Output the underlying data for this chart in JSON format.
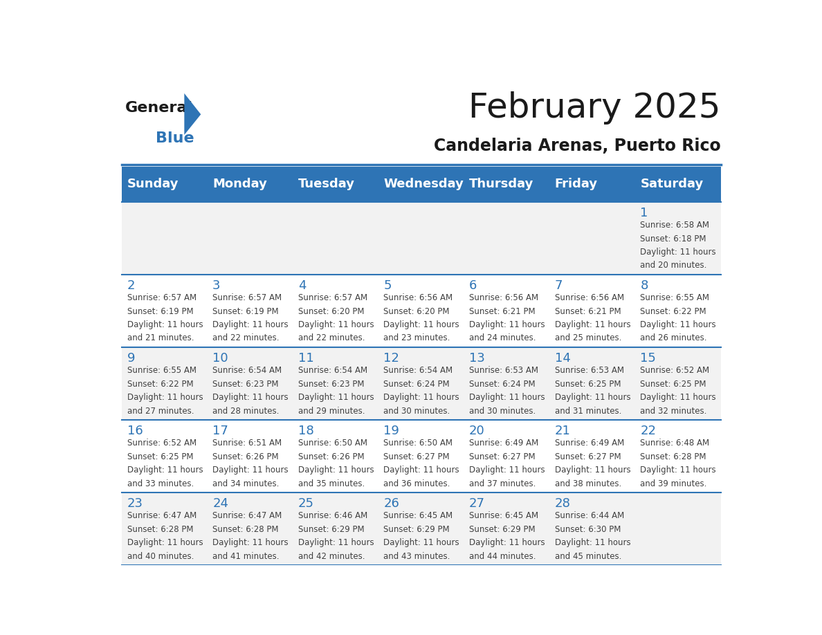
{
  "title": "February 2025",
  "subtitle": "Candelaria Arenas, Puerto Rico",
  "days_of_week": [
    "Sunday",
    "Monday",
    "Tuesday",
    "Wednesday",
    "Thursday",
    "Friday",
    "Saturday"
  ],
  "header_bg": "#2E74B5",
  "header_text": "#FFFFFF",
  "row_bg_light": "#FFFFFF",
  "row_bg_dark": "#F2F2F2",
  "cell_border": "#2E74B5",
  "day_num_color": "#2E74B5",
  "info_text_color": "#404040",
  "title_color": "#1a1a1a",
  "subtitle_color": "#1a1a1a",
  "logo_general_color": "#1a1a1a",
  "logo_blue_color": "#2E74B5",
  "logo_triangle_color": "#2E74B5",
  "calendar": [
    [
      null,
      null,
      null,
      null,
      null,
      null,
      {
        "day": 1,
        "sunrise": "6:58 AM",
        "sunset": "6:18 PM",
        "daylight": "11 hours and 20 minutes."
      }
    ],
    [
      {
        "day": 2,
        "sunrise": "6:57 AM",
        "sunset": "6:19 PM",
        "daylight": "11 hours and 21 minutes."
      },
      {
        "day": 3,
        "sunrise": "6:57 AM",
        "sunset": "6:19 PM",
        "daylight": "11 hours and 22 minutes."
      },
      {
        "day": 4,
        "sunrise": "6:57 AM",
        "sunset": "6:20 PM",
        "daylight": "11 hours and 22 minutes."
      },
      {
        "day": 5,
        "sunrise": "6:56 AM",
        "sunset": "6:20 PM",
        "daylight": "11 hours and 23 minutes."
      },
      {
        "day": 6,
        "sunrise": "6:56 AM",
        "sunset": "6:21 PM",
        "daylight": "11 hours and 24 minutes."
      },
      {
        "day": 7,
        "sunrise": "6:56 AM",
        "sunset": "6:21 PM",
        "daylight": "11 hours and 25 minutes."
      },
      {
        "day": 8,
        "sunrise": "6:55 AM",
        "sunset": "6:22 PM",
        "daylight": "11 hours and 26 minutes."
      }
    ],
    [
      {
        "day": 9,
        "sunrise": "6:55 AM",
        "sunset": "6:22 PM",
        "daylight": "11 hours and 27 minutes."
      },
      {
        "day": 10,
        "sunrise": "6:54 AM",
        "sunset": "6:23 PM",
        "daylight": "11 hours and 28 minutes."
      },
      {
        "day": 11,
        "sunrise": "6:54 AM",
        "sunset": "6:23 PM",
        "daylight": "11 hours and 29 minutes."
      },
      {
        "day": 12,
        "sunrise": "6:54 AM",
        "sunset": "6:24 PM",
        "daylight": "11 hours and 30 minutes."
      },
      {
        "day": 13,
        "sunrise": "6:53 AM",
        "sunset": "6:24 PM",
        "daylight": "11 hours and 30 minutes."
      },
      {
        "day": 14,
        "sunrise": "6:53 AM",
        "sunset": "6:25 PM",
        "daylight": "11 hours and 31 minutes."
      },
      {
        "day": 15,
        "sunrise": "6:52 AM",
        "sunset": "6:25 PM",
        "daylight": "11 hours and 32 minutes."
      }
    ],
    [
      {
        "day": 16,
        "sunrise": "6:52 AM",
        "sunset": "6:25 PM",
        "daylight": "11 hours and 33 minutes."
      },
      {
        "day": 17,
        "sunrise": "6:51 AM",
        "sunset": "6:26 PM",
        "daylight": "11 hours and 34 minutes."
      },
      {
        "day": 18,
        "sunrise": "6:50 AM",
        "sunset": "6:26 PM",
        "daylight": "11 hours and 35 minutes."
      },
      {
        "day": 19,
        "sunrise": "6:50 AM",
        "sunset": "6:27 PM",
        "daylight": "11 hours and 36 minutes."
      },
      {
        "day": 20,
        "sunrise": "6:49 AM",
        "sunset": "6:27 PM",
        "daylight": "11 hours and 37 minutes."
      },
      {
        "day": 21,
        "sunrise": "6:49 AM",
        "sunset": "6:27 PM",
        "daylight": "11 hours and 38 minutes."
      },
      {
        "day": 22,
        "sunrise": "6:48 AM",
        "sunset": "6:28 PM",
        "daylight": "11 hours and 39 minutes."
      }
    ],
    [
      {
        "day": 23,
        "sunrise": "6:47 AM",
        "sunset": "6:28 PM",
        "daylight": "11 hours and 40 minutes."
      },
      {
        "day": 24,
        "sunrise": "6:47 AM",
        "sunset": "6:28 PM",
        "daylight": "11 hours and 41 minutes."
      },
      {
        "day": 25,
        "sunrise": "6:46 AM",
        "sunset": "6:29 PM",
        "daylight": "11 hours and 42 minutes."
      },
      {
        "day": 26,
        "sunrise": "6:45 AM",
        "sunset": "6:29 PM",
        "daylight": "11 hours and 43 minutes."
      },
      {
        "day": 27,
        "sunrise": "6:45 AM",
        "sunset": "6:29 PM",
        "daylight": "11 hours and 44 minutes."
      },
      {
        "day": 28,
        "sunrise": "6:44 AM",
        "sunset": "6:30 PM",
        "daylight": "11 hours and 45 minutes."
      },
      null
    ]
  ]
}
